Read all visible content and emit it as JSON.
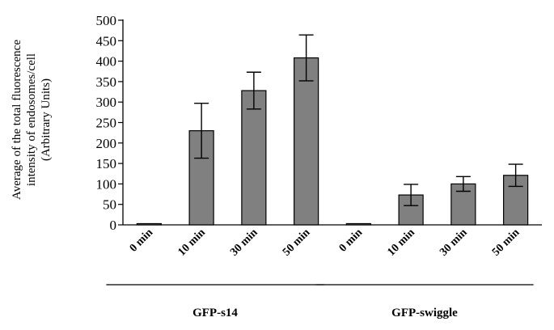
{
  "chart_data": {
    "type": "bar",
    "ylabel_lines": [
      "Average of the total fluorescence",
      "intensity of endosomes/cell",
      "(Arbitrary Units)"
    ],
    "ylim": [
      0,
      500
    ],
    "yticks": [
      0,
      50,
      100,
      150,
      200,
      250,
      300,
      350,
      400,
      450,
      500
    ],
    "categories": [
      "0 min",
      "10 min",
      "30 min",
      "50 min",
      "0 min",
      "10 min",
      "30 min",
      "50 min"
    ],
    "values": [
      3,
      230,
      328,
      408,
      3,
      73,
      100,
      121
    ],
    "errors": [
      0,
      67,
      45,
      56,
      0,
      26,
      18,
      27
    ],
    "groups": [
      {
        "label": "GFP-s14",
        "categories": [
          0,
          1,
          2,
          3
        ]
      },
      {
        "label": "GFP-swiggle",
        "categories": [
          4,
          5,
          6,
          7
        ]
      }
    ],
    "grid": false,
    "bar_color": "#808080"
  }
}
